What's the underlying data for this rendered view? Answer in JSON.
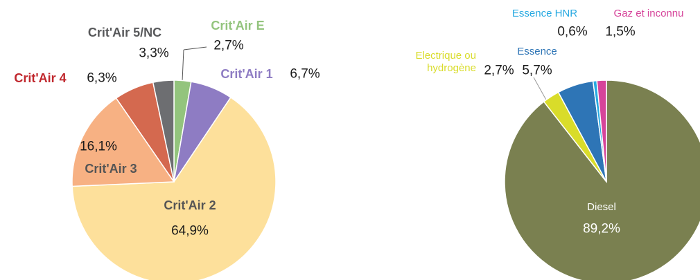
{
  "chart_data": [
    {
      "type": "pie",
      "categories": [
        "Crit'Air E",
        "Crit'Air 1",
        "Crit'Air 2",
        "Crit'Air 3",
        "Crit'Air 4",
        "Crit'Air 5/NC"
      ],
      "values": [
        2.7,
        6.7,
        64.9,
        16.1,
        6.3,
        3.3
      ],
      "value_labels": [
        "2,7%",
        "6,7%",
        "64,9%",
        "16,1%",
        "6,3%",
        "3,3%"
      ],
      "colors": [
        "#93c47d",
        "#8e7cc3",
        "#fde09b",
        "#f7b183",
        "#d4694f",
        "#6d6e71"
      ]
    },
    {
      "type": "pie",
      "categories": [
        "Diesel",
        "Electrique ou hydrogène",
        "Essence",
        "Essence HNR",
        "Gaz et inconnu"
      ],
      "values": [
        89.2,
        2.7,
        5.7,
        0.6,
        1.5
      ],
      "value_labels": [
        "89,2%",
        "2,7%",
        "5,7%",
        "0,6%",
        "1,5%"
      ],
      "colors": [
        "#7a8050",
        "#d9dc2a",
        "#2e75b6",
        "#27a9e1",
        "#d6449a"
      ]
    }
  ]
}
